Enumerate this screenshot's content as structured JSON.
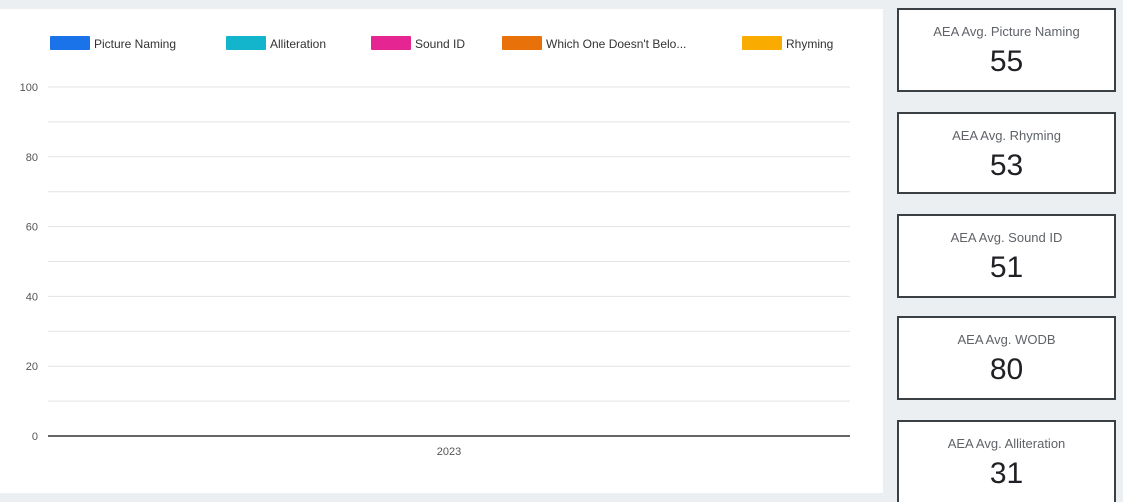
{
  "chart_data": {
    "type": "bar",
    "title": "",
    "xlabel": "",
    "ylabel": "",
    "categories": [
      "2023"
    ],
    "ylim": [
      0,
      100
    ],
    "yticks": [
      0,
      20,
      40,
      60,
      80,
      100
    ],
    "grid": true,
    "legend_position": "top",
    "series": [
      {
        "name": "Picture Naming",
        "color": "#1a73e8",
        "values": [
          null
        ]
      },
      {
        "name": "Alliteration",
        "color": "#12b5cb",
        "values": [
          null
        ]
      },
      {
        "name": "Sound ID",
        "color": "#e52592",
        "values": [
          null
        ]
      },
      {
        "name": "Which One Doesn't Belo...",
        "color": "#e8710a",
        "values": [
          null
        ]
      },
      {
        "name": "Rhyming",
        "color": "#f9ab00",
        "values": [
          null
        ]
      }
    ]
  },
  "scorecards": [
    {
      "label": "AEA Avg. Picture Naming",
      "value": "55"
    },
    {
      "label": "AEA Avg. Rhyming",
      "value": "53"
    },
    {
      "label": "AEA Avg. Sound ID",
      "value": "51"
    },
    {
      "label": "AEA Avg. WODB",
      "value": "80"
    },
    {
      "label": "AEA Avg. Alliteration",
      "value": "31"
    }
  ]
}
